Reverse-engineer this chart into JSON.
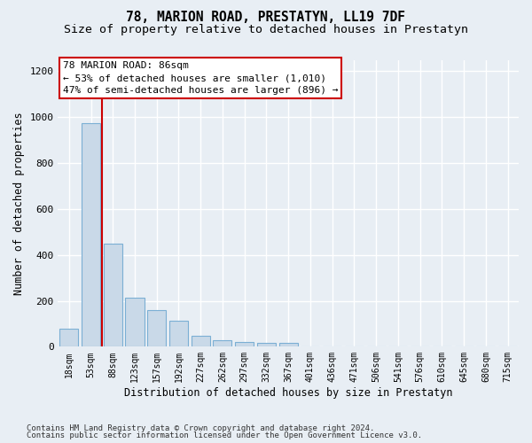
{
  "title": "78, MARION ROAD, PRESTATYN, LL19 7DF",
  "subtitle": "Size of property relative to detached houses in Prestatyn",
  "xlabel": "Distribution of detached houses by size in Prestatyn",
  "ylabel": "Number of detached properties",
  "bar_labels": [
    "18sqm",
    "53sqm",
    "88sqm",
    "123sqm",
    "157sqm",
    "192sqm",
    "227sqm",
    "262sqm",
    "297sqm",
    "332sqm",
    "367sqm",
    "401sqm",
    "436sqm",
    "471sqm",
    "506sqm",
    "541sqm",
    "576sqm",
    "610sqm",
    "645sqm",
    "680sqm",
    "715sqm"
  ],
  "bar_values": [
    80,
    975,
    450,
    215,
    160,
    115,
    48,
    30,
    22,
    15,
    15,
    0,
    0,
    0,
    0,
    0,
    0,
    0,
    0,
    0,
    0
  ],
  "bar_color": "#c9d9e8",
  "bar_edge_color": "#7bafd4",
  "highlight_bar_index": 2,
  "highlight_line_color": "#cc0000",
  "annotation_text": "78 MARION ROAD: 86sqm\n← 53% of detached houses are smaller (1,010)\n47% of semi-detached houses are larger (896) →",
  "annotation_box_color": "#ffffff",
  "annotation_box_edge_color": "#cc0000",
  "ylim": [
    0,
    1250
  ],
  "yticks": [
    0,
    200,
    400,
    600,
    800,
    1000,
    1200
  ],
  "footer_line1": "Contains HM Land Registry data © Crown copyright and database right 2024.",
  "footer_line2": "Contains public sector information licensed under the Open Government Licence v3.0.",
  "bg_color": "#e8eef4",
  "plot_bg_color": "#e8eef4",
  "grid_color": "#ffffff",
  "title_fontsize": 10.5,
  "subtitle_fontsize": 9.5,
  "axis_label_fontsize": 8.5,
  "tick_fontsize": 7,
  "annotation_fontsize": 8,
  "footer_fontsize": 6.5
}
